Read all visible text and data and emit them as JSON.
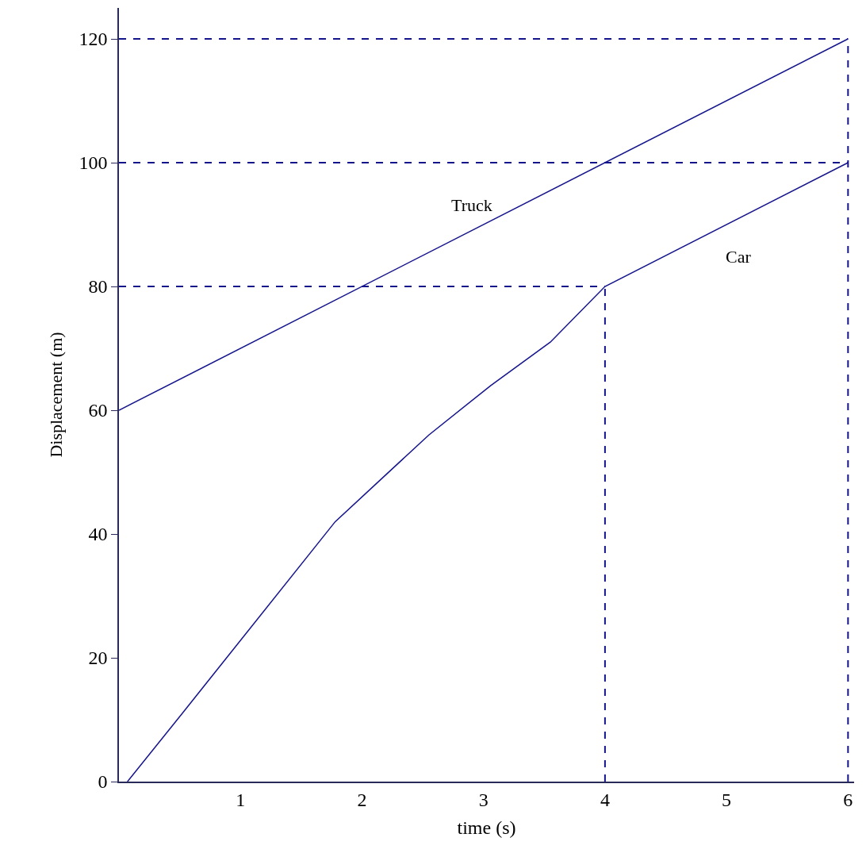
{
  "chart_data": {
    "type": "line",
    "xlabel": "time (s)",
    "ylabel": "Displacement (m)",
    "series": [
      {
        "name": "Truck",
        "color": "#14148c",
        "x": [
          0,
          6
        ],
        "values": [
          60,
          120
        ]
      },
      {
        "name": "Car",
        "color": "#14148c",
        "x": [
          0.07,
          0.52,
          1.78,
          2.11,
          2.55,
          3.06,
          3.55,
          4,
          6
        ],
        "values": [
          0,
          11,
          42,
          48,
          56,
          64,
          71,
          80,
          100
        ]
      }
    ],
    "xlim": [
      0,
      6.05
    ],
    "ylim": [
      0,
      125
    ],
    "xticks": [
      1,
      2,
      3,
      4,
      5,
      6
    ],
    "yticks": [
      0,
      20,
      40,
      60,
      80,
      100,
      120
    ],
    "ref_lines": [
      {
        "axis": "y",
        "value": 120,
        "color": "#14148c",
        "line_style": "dashed"
      },
      {
        "axis": "y",
        "value": 100,
        "color": "#14148c",
        "line_style": "dashed"
      },
      {
        "axis": "y",
        "value": 80,
        "color": "#14148c",
        "line_style": "dashed"
      },
      {
        "axis": "x",
        "value": 4,
        "color": "#14148c",
        "line_style": "dashed"
      },
      {
        "axis": "x",
        "value": 6,
        "color": "#14148c",
        "line_style": "dashed"
      }
    ],
    "grid": false,
    "legend": false,
    "marker": "none",
    "line_style": "solid"
  }
}
